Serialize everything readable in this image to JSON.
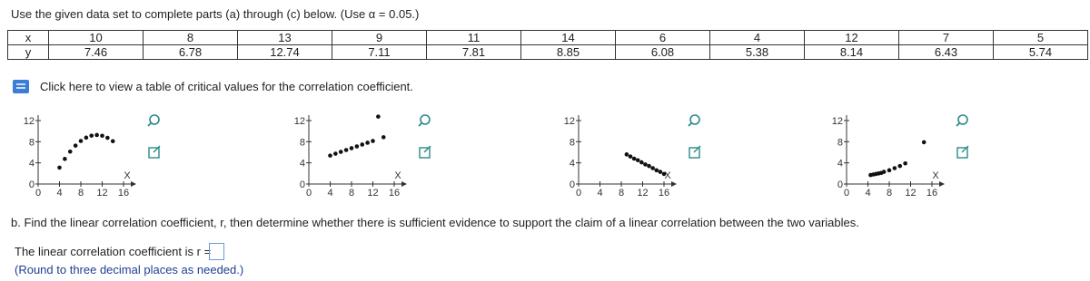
{
  "header": {
    "instruction": "Use the given data set to complete parts (a) through (c) below. (Use α = 0.05.)"
  },
  "table": {
    "rows": [
      [
        "x",
        "10",
        "8",
        "13",
        "9",
        "11",
        "14",
        "6",
        "4",
        "12",
        "7",
        "5"
      ],
      [
        "y",
        "7.46",
        "6.78",
        "12.74",
        "7.11",
        "7.81",
        "8.85",
        "6.08",
        "5.38",
        "8.14",
        "6.43",
        "5.74"
      ]
    ]
  },
  "link": {
    "text": "Click here to view a table of critical values for the correlation coefficient."
  },
  "plots": [
    {
      "x_label": "X",
      "xlim": [
        0,
        16
      ],
      "ylim": [
        0,
        12
      ],
      "xticks": [
        0,
        4,
        8,
        12,
        16
      ],
      "yticks": [
        0,
        4,
        8,
        12
      ],
      "x": [
        10,
        8,
        13,
        9,
        11,
        14,
        6,
        4,
        12,
        7,
        5
      ],
      "y": [
        9.14,
        8.14,
        8.74,
        8.77,
        9.26,
        8.1,
        6.13,
        3.1,
        9.13,
        7.26,
        4.74
      ]
    },
    {
      "x_label": "X",
      "xlim": [
        0,
        16
      ],
      "ylim": [
        0,
        12
      ],
      "xticks": [
        0,
        4,
        8,
        12,
        16
      ],
      "yticks": [
        0,
        4,
        8,
        12
      ],
      "x": [
        10,
        8,
        13,
        9,
        11,
        14,
        6,
        4,
        12,
        7,
        5
      ],
      "y": [
        7.46,
        6.78,
        12.74,
        7.11,
        7.81,
        8.85,
        6.08,
        5.38,
        8.14,
        6.43,
        5.74
      ]
    },
    {
      "x_label": "X",
      "xlim": [
        0,
        16
      ],
      "ylim": [
        0,
        12
      ],
      "xticks": [
        0,
        4,
        8,
        12,
        16
      ],
      "yticks": [
        0,
        4,
        8,
        12
      ],
      "x": [
        9,
        9.7,
        10.4,
        11.1,
        11.8,
        12.5,
        13.2,
        13.9,
        14.6,
        15.3,
        16
      ],
      "y": [
        5.6,
        5.2,
        4.8,
        4.5,
        4.1,
        3.7,
        3.4,
        3,
        2.6,
        2.3,
        1.9
      ]
    },
    {
      "x_label": "X",
      "xlim": [
        0,
        16
      ],
      "ylim": [
        0,
        12
      ],
      "xticks": [
        0,
        4,
        8,
        12,
        16
      ],
      "yticks": [
        0,
        4,
        8,
        12
      ],
      "x": [
        4.5,
        5,
        5.5,
        6,
        6.5,
        7,
        8,
        9,
        10,
        11,
        14.5
      ],
      "y": [
        1.7,
        1.8,
        1.9,
        2,
        2.1,
        2.3,
        2.6,
        3,
        3.4,
        3.9,
        7.9
      ]
    }
  ],
  "part_b": {
    "question": "b. Find the linear correlation coefficient, r, then determine whether there is sufficient evidence to support the claim of a linear correlation between the two variables.",
    "answer_prompt": "The linear correlation coefficient is r =",
    "hint": "(Round to three decimal places as needed.)"
  }
}
